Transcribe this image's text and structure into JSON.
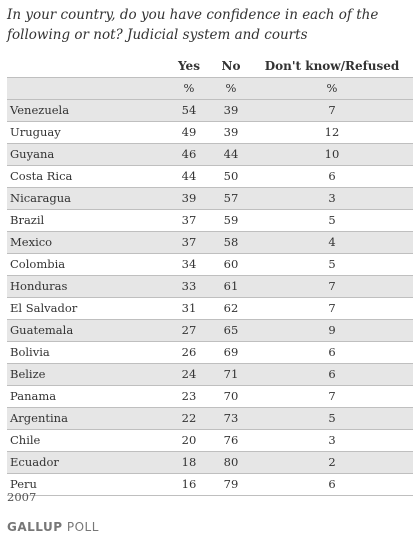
{
  "title": "In your country, do you have confidence in each of the following or not? Judicial system and courts",
  "columns": {
    "yes": "Yes",
    "no": "No",
    "dk": "Don't know/Refused"
  },
  "unit_row": {
    "yes": "%",
    "no": "%",
    "dk": "%"
  },
  "rows": [
    {
      "country": "Venezuela",
      "yes": "54",
      "no": "39",
      "dk": "7"
    },
    {
      "country": "Uruguay",
      "yes": "49",
      "no": "39",
      "dk": "12"
    },
    {
      "country": "Guyana",
      "yes": "46",
      "no": "44",
      "dk": "10"
    },
    {
      "country": "Costa Rica",
      "yes": "44",
      "no": "50",
      "dk": "6"
    },
    {
      "country": "Nicaragua",
      "yes": "39",
      "no": "57",
      "dk": "3"
    },
    {
      "country": "Brazil",
      "yes": "37",
      "no": "59",
      "dk": "5"
    },
    {
      "country": "Mexico",
      "yes": "37",
      "no": "58",
      "dk": "4"
    },
    {
      "country": "Colombia",
      "yes": "34",
      "no": "60",
      "dk": "5"
    },
    {
      "country": "Honduras",
      "yes": "33",
      "no": "61",
      "dk": "7"
    },
    {
      "country": "El Salvador",
      "yes": "31",
      "no": "62",
      "dk": "7"
    },
    {
      "country": "Guatemala",
      "yes": "27",
      "no": "65",
      "dk": "9"
    },
    {
      "country": "Bolivia",
      "yes": "26",
      "no": "69",
      "dk": "6"
    },
    {
      "country": "Belize",
      "yes": "24",
      "no": "71",
      "dk": "6"
    },
    {
      "country": "Panama",
      "yes": "23",
      "no": "70",
      "dk": "7"
    },
    {
      "country": "Argentina",
      "yes": "22",
      "no": "73",
      "dk": "5"
    },
    {
      "country": "Chile",
      "yes": "20",
      "no": "76",
      "dk": "3"
    },
    {
      "country": "Ecuador",
      "yes": "18",
      "no": "80",
      "dk": "2"
    },
    {
      "country": "Peru",
      "yes": "16",
      "no": "79",
      "dk": "6"
    }
  ],
  "footer": {
    "year": "2007",
    "brand_part1": "GALLUP",
    "brand_part2": "POLL"
  }
}
